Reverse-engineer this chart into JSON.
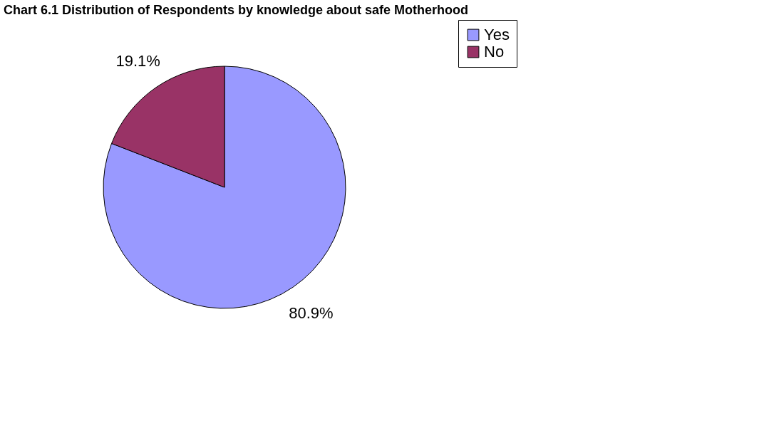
{
  "chart_data": {
    "type": "pie",
    "title": "Chart 6.1 Distribution of Respondents by knowledge about safe Motherhood",
    "categories": [
      "Yes",
      "No"
    ],
    "values": [
      80.9,
      19.1
    ],
    "colors": [
      "#9999ff",
      "#993366"
    ],
    "value_labels": [
      "80.9%",
      "19.1%"
    ],
    "legend": "right"
  }
}
